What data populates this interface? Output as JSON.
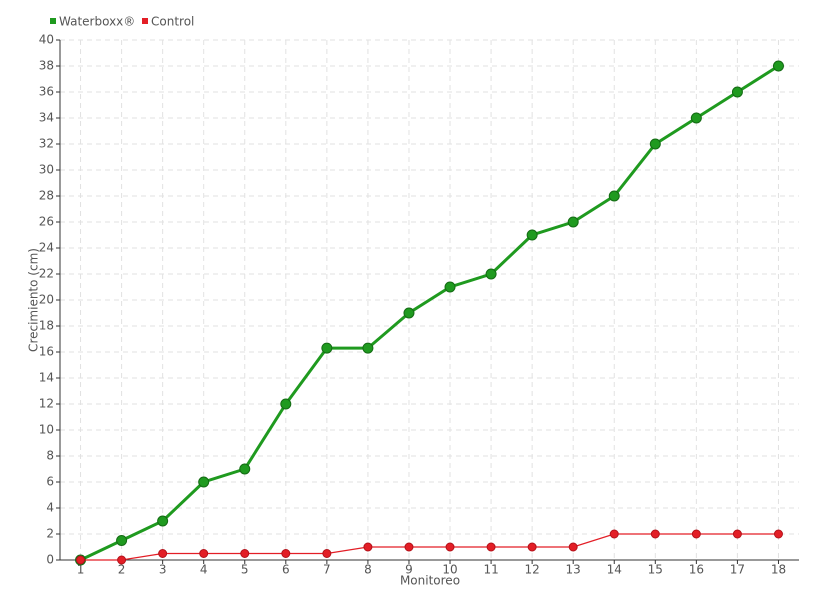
{
  "chart_data": {
    "type": "line",
    "x_label": "Monitoreo",
    "y_label": "Crecimiento (cm)",
    "categories": [
      "1",
      "2",
      "3",
      "4",
      "5",
      "6",
      "7",
      "8",
      "9",
      "10",
      "11",
      "12",
      "13",
      "14",
      "15",
      "16",
      "17",
      "18"
    ],
    "series": [
      {
        "name": "Waterboxx®",
        "color": "#1f9a1f",
        "values": [
          0,
          1.5,
          3,
          6,
          7,
          12,
          16.3,
          16.3,
          19,
          21,
          22,
          25,
          26,
          28,
          32,
          34,
          36,
          38
        ]
      },
      {
        "name": "Control",
        "color": "#e31e26",
        "values": [
          0,
          0,
          0.5,
          0.5,
          0.5,
          0.5,
          0.5,
          1,
          1,
          1,
          1,
          1,
          1,
          2,
          2,
          2,
          2,
          2
        ]
      }
    ],
    "ylim": [
      0,
      40
    ],
    "yticks": [
      0,
      2,
      4,
      6,
      8,
      10,
      12,
      14,
      16,
      18,
      20,
      22,
      24,
      26,
      28,
      30,
      32,
      34,
      36,
      38,
      40
    ],
    "grid": true,
    "legend": "top-left"
  }
}
